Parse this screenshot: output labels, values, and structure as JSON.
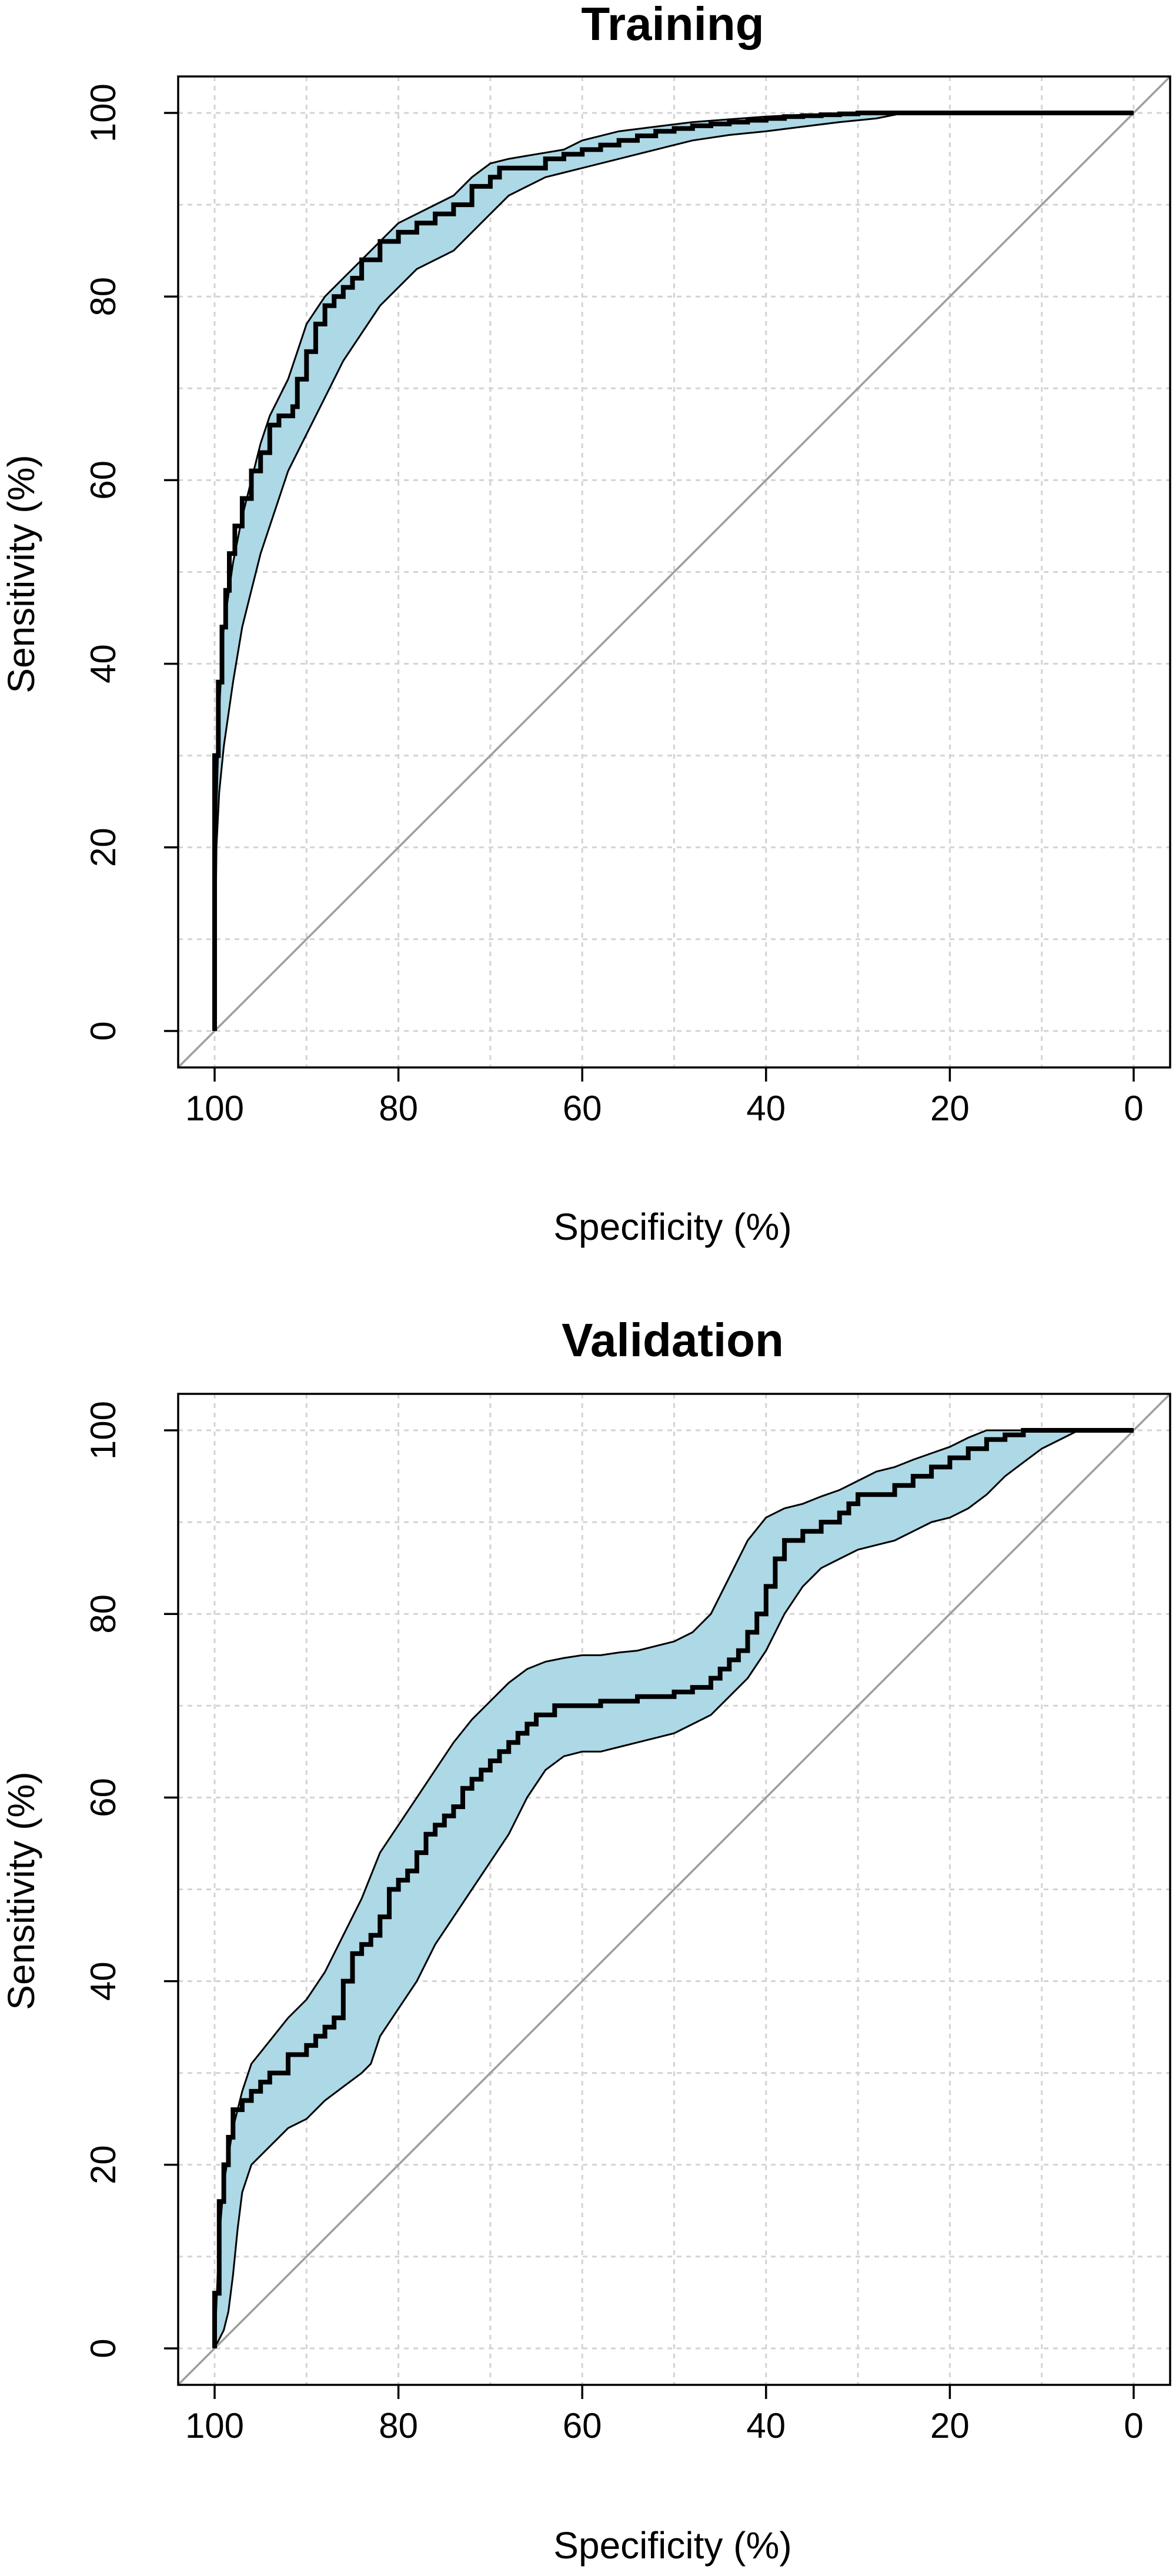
{
  "colors": {
    "ci_fill": "#add8e6",
    "curve": "#000000",
    "diagonal": "#9e9e9e",
    "grid": "#d3d3d3"
  },
  "chart_data": [
    {
      "type": "line",
      "title": "Training",
      "xlabel": "Specificity (%)",
      "ylabel": "Sensitivity (%)",
      "xlim": [
        100,
        0
      ],
      "ylim": [
        0,
        100
      ],
      "x_reversed": true,
      "xticks": [
        "100",
        "80",
        "60",
        "40",
        "20",
        "0"
      ],
      "yticks": [
        "0",
        "20",
        "40",
        "60",
        "80",
        "100"
      ],
      "grid": true,
      "reference_line": "diagonal",
      "series": [
        {
          "role": "roc",
          "x": [
            100,
            100,
            99.6,
            99.2,
            98.8,
            98.4,
            97.8,
            97,
            96,
            95,
            94,
            93,
            91.5,
            91,
            90,
            89,
            88,
            87,
            86,
            85,
            84,
            82,
            80,
            78,
            76,
            74,
            72,
            70,
            69,
            68,
            66,
            64,
            62,
            60,
            58,
            56,
            54,
            52,
            50,
            48,
            46,
            44,
            42,
            40,
            38,
            36,
            34,
            32,
            30,
            28,
            26,
            24,
            20,
            10,
            0
          ],
          "y": [
            0,
            21,
            30,
            38,
            44,
            48,
            52,
            55,
            58,
            61,
            63,
            66,
            67,
            68,
            71,
            74,
            77,
            79,
            80,
            81,
            82,
            84,
            86,
            87,
            88,
            89,
            90,
            92,
            93,
            94,
            94,
            94,
            95,
            95.5,
            96,
            96.5,
            97,
            97.5,
            98,
            98.3,
            98.6,
            98.8,
            99,
            99.2,
            99.4,
            99.6,
            99.7,
            99.8,
            99.9,
            100,
            100,
            100,
            100,
            100,
            100
          ]
        },
        {
          "role": "ci-upper",
          "x": [
            100,
            99.8,
            99.5,
            99,
            98,
            97,
            96,
            95,
            94,
            93,
            92,
            91,
            90,
            88,
            86,
            84,
            82,
            80,
            78,
            76,
            74,
            72,
            70,
            68,
            65,
            62,
            60,
            56,
            52,
            48,
            44,
            40,
            36,
            32,
            28,
            25,
            20,
            10,
            0
          ],
          "y": [
            0,
            24,
            35,
            44,
            51,
            56,
            60,
            64,
            67,
            69,
            71,
            74,
            77,
            80,
            82,
            84,
            86,
            88,
            89,
            90,
            91,
            93,
            94.5,
            95,
            95.5,
            96,
            97,
            98,
            98.5,
            99,
            99.3,
            99.6,
            99.8,
            99.9,
            100,
            100,
            100,
            100,
            100
          ]
        },
        {
          "role": "ci-lower",
          "x": [
            100,
            99.8,
            99.5,
            99,
            98,
            97,
            96,
            95,
            94,
            93,
            92,
            90,
            88,
            86,
            84,
            82,
            80,
            78,
            76,
            74,
            72,
            70,
            68,
            66,
            64,
            62,
            60,
            56,
            52,
            48,
            44,
            40,
            36,
            32,
            28,
            25,
            20,
            10,
            0
          ],
          "y": [
            0,
            20,
            26,
            31,
            38,
            44,
            48,
            52,
            55,
            58,
            61,
            65,
            69,
            73,
            76,
            79,
            81,
            83,
            84,
            85,
            87,
            89,
            91,
            92,
            93,
            93.5,
            94,
            95,
            96,
            97,
            97.6,
            98,
            98.5,
            99,
            99.4,
            100,
            100,
            100,
            100
          ]
        }
      ]
    },
    {
      "type": "line",
      "title": "Validation",
      "xlabel": "Specificity (%)",
      "ylabel": "Sensitivity (%)",
      "xlim": [
        100,
        0
      ],
      "ylim": [
        0,
        100
      ],
      "x_reversed": true,
      "xticks": [
        "100",
        "80",
        "60",
        "40",
        "20",
        "0"
      ],
      "yticks": [
        "0",
        "20",
        "40",
        "60",
        "80",
        "100"
      ],
      "grid": true,
      "reference_line": "diagonal",
      "series": [
        {
          "role": "roc",
          "x": [
            100,
            99.5,
            99,
            98.5,
            98,
            97,
            96,
            95,
            94,
            93,
            92,
            91,
            90,
            89,
            88,
            87,
            86,
            85,
            84,
            83,
            82,
            81,
            80,
            79,
            78,
            77,
            76,
            75,
            74,
            73,
            72,
            71,
            70,
            69,
            68,
            67,
            66,
            65,
            64,
            63,
            62,
            61,
            60,
            58,
            56,
            54,
            52,
            50,
            48,
            46,
            45,
            44,
            43,
            42,
            41,
            40,
            39,
            38,
            37,
            36,
            35,
            34,
            33,
            32,
            31,
            30,
            28,
            26,
            24,
            22,
            20,
            18,
            16,
            14,
            12,
            10,
            8,
            6,
            4,
            0
          ],
          "y": [
            0,
            6,
            16,
            20,
            23,
            26,
            27,
            28,
            29,
            30,
            30,
            32,
            32,
            33,
            34,
            35,
            36,
            40,
            43,
            44,
            45,
            47,
            50,
            51,
            52,
            54,
            56,
            57,
            58,
            59,
            61,
            62,
            63,
            64,
            65,
            66,
            67,
            68,
            69,
            69,
            70,
            70,
            70,
            70,
            70.5,
            70.5,
            71,
            71,
            71.5,
            72,
            73,
            74,
            75,
            76,
            78,
            80,
            83,
            86,
            88,
            88,
            89,
            89,
            90,
            90,
            91,
            92,
            93,
            93,
            94,
            95,
            96,
            97,
            98,
            99,
            99.5,
            100,
            100,
            100,
            100,
            100
          ]
        },
        {
          "role": "ci-upper",
          "x": [
            100,
            99.5,
            99,
            98,
            97,
            96,
            94,
            92,
            90,
            88,
            86,
            84,
            82,
            80,
            78,
            76,
            74,
            72,
            70,
            68,
            66,
            64,
            62,
            60,
            58,
            56,
            54,
            52,
            50,
            48,
            46,
            44,
            42,
            40,
            38,
            36,
            34,
            32,
            30,
            28,
            26,
            24,
            22,
            20,
            18,
            16,
            14,
            12,
            10,
            8,
            6,
            0
          ],
          "y": [
            0,
            12,
            18,
            24,
            28,
            31,
            33.5,
            36,
            38,
            41,
            45,
            49,
            54,
            57,
            60,
            63,
            66,
            68.5,
            70.5,
            72.5,
            74,
            74.8,
            75.2,
            75.5,
            75.5,
            75.8,
            76,
            76.5,
            77,
            78,
            80,
            84,
            88,
            90.5,
            91.5,
            92,
            92.8,
            93.5,
            94.5,
            95.5,
            96,
            96.8,
            97.5,
            98.2,
            99.2,
            100,
            100,
            100,
            100,
            100,
            100,
            100
          ]
        },
        {
          "role": "ci-lower",
          "x": [
            100,
            99.5,
            99,
            98.5,
            98,
            97.5,
            97,
            96,
            94,
            92,
            90,
            88,
            86,
            84,
            83,
            82,
            80,
            78,
            76,
            74,
            72,
            70,
            68,
            66,
            64,
            62,
            60,
            58,
            56,
            54,
            52,
            50,
            48,
            46,
            44,
            42,
            40,
            38,
            36,
            35,
            34,
            32,
            30,
            28,
            26,
            24,
            22,
            20,
            18,
            16,
            14,
            12,
            10,
            8,
            6,
            4,
            0
          ],
          "y": [
            0,
            1,
            2,
            4,
            8,
            13,
            17,
            20,
            22,
            24,
            25,
            27,
            28.5,
            30,
            31,
            34,
            37,
            40,
            44,
            47,
            50,
            53,
            56,
            60,
            63,
            64.5,
            65,
            65,
            65.5,
            66,
            66.5,
            67,
            68,
            69,
            71,
            73,
            76,
            80,
            83,
            84,
            85,
            86,
            87,
            87.5,
            88,
            89,
            90,
            90.5,
            91.5,
            93,
            95,
            96.5,
            98,
            99,
            100,
            100,
            100
          ]
        }
      ]
    }
  ]
}
